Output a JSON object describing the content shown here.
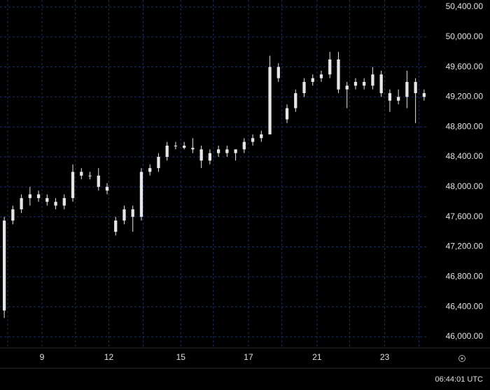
{
  "chart_data": {
    "type": "candlestick",
    "color": "#e6e6e6",
    "grid": true,
    "xlim": [
      0,
      50
    ],
    "ylim": [
      45850,
      50493
    ],
    "xticks": [
      {
        "value": 0.9,
        "label": null
      },
      {
        "value": 4.9,
        "label": "9"
      },
      {
        "value": 8.8,
        "label": null
      },
      {
        "value": 12.7,
        "label": "12"
      },
      {
        "value": 16.7,
        "label": null
      },
      {
        "value": 21.1,
        "label": "15"
      },
      {
        "value": 24.9,
        "label": null
      },
      {
        "value": 29.0,
        "label": "17"
      },
      {
        "value": 32.9,
        "label": null
      },
      {
        "value": 37.0,
        "label": "21"
      },
      {
        "value": 40.8,
        "label": null
      },
      {
        "value": 44.9,
        "label": "23"
      },
      {
        "value": 48.9,
        "label": null
      }
    ],
    "yticks": [
      {
        "value": 46000,
        "label": "46,000.00"
      },
      {
        "value": 46400,
        "label": "46,400.00"
      },
      {
        "value": 46800,
        "label": "46,800.00"
      },
      {
        "value": 47200,
        "label": "47,200.00"
      },
      {
        "value": 47600,
        "label": "47,600.00"
      },
      {
        "value": 48000,
        "label": "48,000.00"
      },
      {
        "value": 48400,
        "label": "48,400.00"
      },
      {
        "value": 48800,
        "label": "48,800.00"
      },
      {
        "value": 49200,
        "label": "49,200.00"
      },
      {
        "value": 49600,
        "label": "49,600.00"
      },
      {
        "value": 50000,
        "label": "50,000.00"
      },
      {
        "value": 50400,
        "label": "50,400.00"
      }
    ],
    "series": [
      {
        "open": [
          46350,
          47550,
          47700,
          47850,
          47900,
          47850,
          47800,
          47750,
          47850,
          48200,
          48150,
          48150,
          48000,
          47400,
          47550,
          47700,
          47600,
          48200,
          48250,
          48400,
          48550,
          48550,
          48520,
          48500,
          48350,
          48450,
          48500,
          48450,
          48500,
          48600,
          48650,
          48700,
          49600,
          48900,
          49050,
          49250,
          49400,
          49450,
          49500,
          49700,
          49300,
          49350,
          49400,
          49350,
          49500,
          49250,
          49150,
          49200,
          49400,
          49250
        ],
        "high": [
          47600,
          47750,
          47900,
          48000,
          47950,
          47900,
          47850,
          47900,
          48300,
          48250,
          48200,
          48250,
          48050,
          47600,
          47750,
          47750,
          48250,
          48300,
          48450,
          48600,
          48600,
          48600,
          48650,
          48550,
          48500,
          48550,
          48550,
          48500,
          48650,
          48700,
          48750,
          49750,
          49650,
          49100,
          49300,
          49450,
          49500,
          49550,
          49800,
          49800,
          49400,
          49450,
          49450,
          49600,
          49550,
          49300,
          49300,
          49550,
          49450,
          49300
        ],
        "low": [
          46250,
          47500,
          47650,
          47750,
          47800,
          47750,
          47700,
          47700,
          47800,
          48100,
          48100,
          47950,
          47900,
          47350,
          47500,
          47400,
          47550,
          48150,
          48200,
          48350,
          48500,
          48500,
          48450,
          48250,
          48300,
          48400,
          48400,
          48350,
          48450,
          48550,
          48600,
          48700,
          49400,
          48850,
          49000,
          49200,
          49350,
          49400,
          49450,
          49250,
          49050,
          49300,
          49300,
          49300,
          49200,
          49000,
          49100,
          49050,
          48850,
          49150
        ],
        "close": [
          47550,
          47700,
          47850,
          47900,
          47850,
          47800,
          47750,
          47850,
          48200,
          48150,
          48150,
          48000,
          47950,
          47550,
          47700,
          47600,
          48200,
          48250,
          48400,
          48550,
          48550,
          48520,
          48500,
          48350,
          48450,
          48500,
          48450,
          48500,
          48600,
          48650,
          48700,
          49600,
          49450,
          49050,
          49250,
          49400,
          49450,
          49500,
          49700,
          49300,
          49350,
          49400,
          49350,
          49500,
          49250,
          49150,
          49200,
          49400,
          49250,
          49200
        ]
      }
    ],
    "time_label": "06:44:01 UTC"
  }
}
